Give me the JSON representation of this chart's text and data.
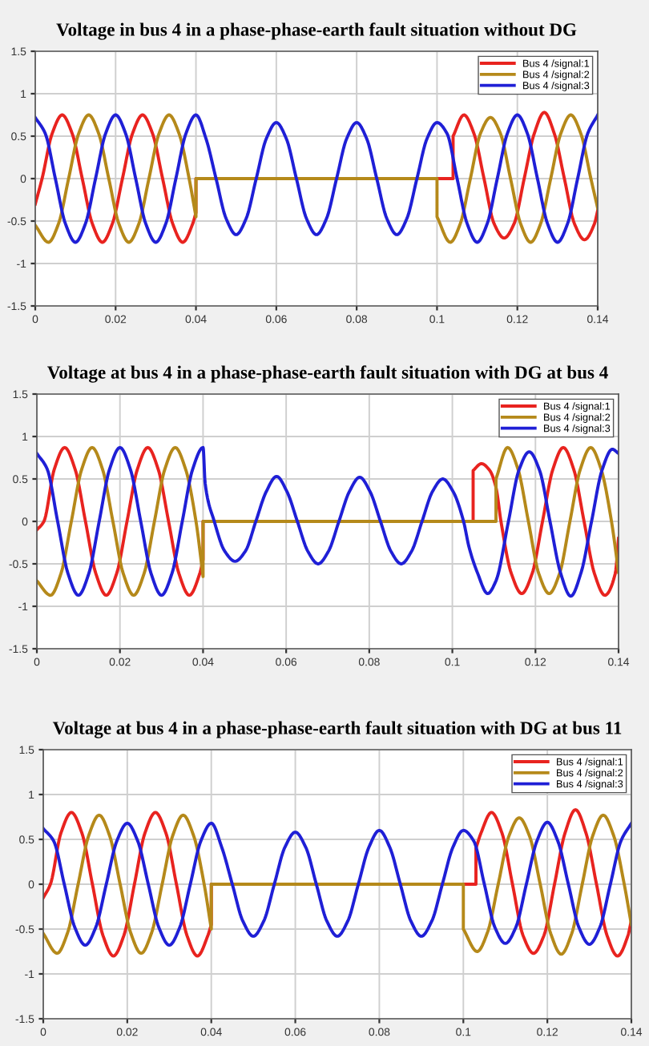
{
  "chart_data": [
    {
      "type": "line",
      "title": "Voltage in bus 4 in a phase-phase-earth fault situation without DG",
      "xlim": [
        0,
        0.14
      ],
      "ylim": [
        -1.5,
        1.5
      ],
      "xticks": [
        0,
        0.02,
        0.04,
        0.06,
        0.08,
        0.1,
        0.12,
        0.14
      ],
      "yticks": [
        -1.5,
        -1,
        -0.5,
        0,
        0.5,
        1,
        1.5
      ],
      "grid": true,
      "legend": "top right",
      "marker": "none",
      "line_style": "solid",
      "series": [
        {
          "name": "Bus 4 /signal:1",
          "color": "#e8231f",
          "x": [
            0,
            0.0017,
            0.0042,
            0.0067,
            0.0092,
            0.0117,
            0.0142,
            0.0167,
            0.0192,
            0.0217,
            0.0242,
            0.0267,
            0.0292,
            0.0317,
            0.0342,
            0.0367,
            0.0392,
            0.04,
            0.04,
            0.104,
            0.104,
            0.1067,
            0.1092,
            0.1117,
            0.1142,
            0.1167,
            0.1192,
            0.1217,
            0.1242,
            0.1267,
            0.1292,
            0.1317,
            0.1342,
            0.1367,
            0.1392,
            0.14
          ],
          "values": [
            -0.3,
            0,
            0.53,
            0.75,
            0.53,
            0,
            -0.53,
            -0.75,
            -0.53,
            0,
            0.53,
            0.75,
            0.53,
            0,
            -0.53,
            -0.75,
            -0.53,
            -0.4,
            0,
            0,
            0.5,
            0.75,
            0.53,
            0,
            -0.53,
            -0.7,
            -0.53,
            0,
            0.53,
            0.78,
            0.53,
            0,
            -0.53,
            -0.72,
            -0.53,
            -0.375
          ]
        },
        {
          "name": "Bus 4 /signal:2",
          "color": "#b5891a",
          "x": [
            0,
            0.0033,
            0.0058,
            0.0083,
            0.0108,
            0.0133,
            0.0158,
            0.0183,
            0.0208,
            0.0233,
            0.0258,
            0.0283,
            0.0308,
            0.0333,
            0.0358,
            0.0383,
            0.04,
            0.04,
            0.1,
            0.1,
            0.1033,
            0.1058,
            0.1083,
            0.1108,
            0.1133,
            0.1158,
            0.1183,
            0.1208,
            0.1233,
            0.1258,
            0.1283,
            0.1308,
            0.1333,
            0.1358,
            0.1383,
            0.14
          ],
          "values": [
            -0.55,
            -0.75,
            -0.53,
            0,
            0.53,
            0.75,
            0.53,
            0,
            -0.53,
            -0.75,
            -0.53,
            0,
            0.53,
            0.75,
            0.53,
            0,
            -0.45,
            0,
            0,
            -0.45,
            -0.75,
            -0.53,
            0,
            0.53,
            0.72,
            0.53,
            0,
            -0.53,
            -0.75,
            -0.53,
            0,
            0.53,
            0.75,
            0.53,
            0,
            -0.35
          ]
        },
        {
          "name": "Bus 4 /signal:3",
          "color": "#1f1fd6",
          "x": [
            0,
            0.0025,
            0.005,
            0.0075,
            0.01,
            0.0125,
            0.015,
            0.0175,
            0.02,
            0.0225,
            0.025,
            0.0275,
            0.03,
            0.0325,
            0.035,
            0.0375,
            0.04,
            0.0425,
            0.045,
            0.0475,
            0.05,
            0.0525,
            0.055,
            0.0575,
            0.06,
            0.0625,
            0.065,
            0.0675,
            0.07,
            0.0725,
            0.075,
            0.0775,
            0.08,
            0.0825,
            0.085,
            0.0875,
            0.09,
            0.0925,
            0.095,
            0.0975,
            0.1,
            0.1025,
            0.105,
            0.1075,
            0.11,
            0.1125,
            0.115,
            0.1175,
            0.12,
            0.1225,
            0.125,
            0.1275,
            0.13,
            0.1325,
            0.135,
            0.1375,
            0.14
          ],
          "values": [
            0.72,
            0.53,
            0,
            -0.53,
            -0.75,
            -0.53,
            0,
            0.53,
            0.75,
            0.53,
            0,
            -0.53,
            -0.75,
            -0.53,
            0,
            0.53,
            0.75,
            0.47,
            0,
            -0.47,
            -0.66,
            -0.47,
            0,
            0.47,
            0.66,
            0.47,
            0,
            -0.47,
            -0.66,
            -0.47,
            0,
            0.47,
            0.66,
            0.47,
            0,
            -0.47,
            -0.66,
            -0.47,
            0,
            0.47,
            0.66,
            0.53,
            0,
            -0.53,
            -0.75,
            -0.53,
            0,
            0.53,
            0.75,
            0.53,
            0,
            -0.53,
            -0.75,
            -0.53,
            0,
            0.53,
            0.75
          ]
        }
      ]
    },
    {
      "type": "line",
      "title": "Voltage at bus 4 in a phase-phase-earth fault situation with DG at bus 4",
      "xlim": [
        0,
        0.14
      ],
      "ylim": [
        -1.5,
        1.5
      ],
      "xticks": [
        0,
        0.02,
        0.04,
        0.06,
        0.08,
        0.1,
        0.12,
        0.14
      ],
      "yticks": [
        -1.5,
        -1,
        -0.5,
        0,
        0.5,
        1,
        1.5
      ],
      "grid": true,
      "legend": "top right",
      "marker": "none",
      "line_style": "solid",
      "series": [
        {
          "name": "Bus 4 /signal:1",
          "color": "#e8231f",
          "x": [
            0,
            0.0017,
            0.0042,
            0.0067,
            0.0092,
            0.0117,
            0.0142,
            0.0167,
            0.0192,
            0.0217,
            0.0242,
            0.0267,
            0.0292,
            0.0317,
            0.0342,
            0.0367,
            0.0392,
            0.04,
            0.04,
            0.105,
            0.105,
            0.107,
            0.109,
            0.1105,
            0.1117,
            0.1142,
            0.1167,
            0.1192,
            0.1217,
            0.1242,
            0.1267,
            0.1292,
            0.1317,
            0.1342,
            0.1367,
            0.1392,
            0.14
          ],
          "values": [
            -0.1,
            0,
            0.615,
            0.87,
            0.615,
            0,
            -0.615,
            -0.87,
            -0.615,
            0,
            0.615,
            0.87,
            0.615,
            0,
            -0.615,
            -0.87,
            -0.615,
            -0.45,
            0,
            0,
            0.6,
            0.68,
            0.6,
            0.4,
            0,
            -0.615,
            -0.85,
            -0.615,
            0,
            0.615,
            0.87,
            0.615,
            0,
            -0.615,
            -0.87,
            -0.615,
            -0.2
          ]
        },
        {
          "name": "Bus 4 /signal:2",
          "color": "#b5891a",
          "x": [
            0,
            0.0033,
            0.0058,
            0.0083,
            0.0108,
            0.0133,
            0.0158,
            0.0183,
            0.0208,
            0.0233,
            0.0258,
            0.0283,
            0.0308,
            0.0333,
            0.0358,
            0.0383,
            0.04,
            0.04,
            0.1105,
            0.1105,
            0.1133,
            0.1158,
            0.1183,
            0.1208,
            0.1233,
            0.1258,
            0.1283,
            0.1308,
            0.1333,
            0.1358,
            0.1383,
            0.14
          ],
          "values": [
            -0.7,
            -0.87,
            -0.615,
            0,
            0.615,
            0.87,
            0.615,
            0,
            -0.615,
            -0.87,
            -0.615,
            0,
            0.615,
            0.87,
            0.615,
            0,
            -0.65,
            0,
            0,
            0.5,
            0.87,
            0.615,
            0,
            -0.615,
            -0.85,
            -0.615,
            0,
            0.615,
            0.87,
            0.615,
            0,
            -0.6
          ]
        },
        {
          "name": "Bus 4 /signal:3",
          "color": "#1f1fd6",
          "x": [
            0,
            0.0025,
            0.005,
            0.0075,
            0.01,
            0.0125,
            0.015,
            0.0175,
            0.02,
            0.0225,
            0.025,
            0.0275,
            0.03,
            0.0325,
            0.035,
            0.0375,
            0.04,
            0.0405,
            0.0427,
            0.0452,
            0.0477,
            0.0502,
            0.0527,
            0.0552,
            0.0577,
            0.0602,
            0.0627,
            0.0652,
            0.0677,
            0.0702,
            0.0727,
            0.0752,
            0.0777,
            0.0802,
            0.0827,
            0.0852,
            0.0877,
            0.0902,
            0.0927,
            0.0952,
            0.0977,
            0.1002,
            0.1027,
            0.104,
            0.106,
            0.1085,
            0.1105,
            0.1135,
            0.116,
            0.1185,
            0.121,
            0.1235,
            0.126,
            0.1285,
            0.131,
            0.1335,
            0.136,
            0.1385,
            0.14
          ],
          "values": [
            0.8,
            0.615,
            0,
            -0.615,
            -0.87,
            -0.615,
            0,
            0.615,
            0.87,
            0.615,
            0,
            -0.615,
            -0.87,
            -0.615,
            0,
            0.615,
            0.87,
            0.45,
            0,
            -0.35,
            -0.47,
            -0.35,
            0,
            0.35,
            0.53,
            0.35,
            0,
            -0.35,
            -0.5,
            -0.35,
            0,
            0.35,
            0.52,
            0.35,
            0,
            -0.35,
            -0.5,
            -0.35,
            0,
            0.35,
            0.5,
            0.35,
            0,
            -0.3,
            -0.6,
            -0.85,
            -0.7,
            0,
            0.6,
            0.82,
            0.6,
            0,
            -0.6,
            -0.88,
            -0.6,
            0,
            0.6,
            0.85,
            0.8
          ]
        }
      ]
    },
    {
      "type": "line",
      "title": "Voltage at bus 4 in a phase-phase-earth fault situation with DG at bus 11",
      "xlim": [
        0,
        0.14
      ],
      "ylim": [
        -1.5,
        1.5
      ],
      "xticks": [
        0,
        0.02,
        0.04,
        0.06,
        0.08,
        0.1,
        0.12,
        0.14
      ],
      "yticks": [
        -1.5,
        -1,
        -0.5,
        0,
        0.5,
        1,
        1.5
      ],
      "grid": true,
      "legend": "top right",
      "marker": "none",
      "line_style": "solid",
      "series": [
        {
          "name": "Bus 4 /signal:1",
          "color": "#e8231f",
          "x": [
            0,
            0.0017,
            0.0042,
            0.0067,
            0.0092,
            0.0117,
            0.0142,
            0.0167,
            0.0192,
            0.0217,
            0.0242,
            0.0267,
            0.0292,
            0.0317,
            0.0342,
            0.0367,
            0.0392,
            0.04,
            0.04,
            0.103,
            0.103,
            0.1042,
            0.1067,
            0.1092,
            0.1117,
            0.1142,
            0.1167,
            0.1192,
            0.1217,
            0.1242,
            0.1267,
            0.1292,
            0.1317,
            0.1342,
            0.1367,
            0.1392,
            0.14
          ],
          "values": [
            -0.15,
            0,
            0.57,
            0.8,
            0.57,
            0,
            -0.57,
            -0.8,
            -0.57,
            0,
            0.57,
            0.8,
            0.57,
            0,
            -0.57,
            -0.8,
            -0.57,
            -0.45,
            0,
            0,
            0.4,
            0.57,
            0.8,
            0.57,
            0,
            -0.57,
            -0.77,
            -0.57,
            0,
            0.57,
            0.83,
            0.57,
            0,
            -0.57,
            -0.8,
            -0.57,
            -0.4
          ]
        },
        {
          "name": "Bus 4 /signal:2",
          "color": "#b5891a",
          "x": [
            0,
            0.0033,
            0.0058,
            0.0083,
            0.0108,
            0.0133,
            0.0158,
            0.0183,
            0.0208,
            0.0233,
            0.0258,
            0.0283,
            0.0308,
            0.0333,
            0.0358,
            0.0383,
            0.04,
            0.04,
            0.1,
            0.1,
            0.1033,
            0.1058,
            0.1083,
            0.1108,
            0.1133,
            0.1158,
            0.1183,
            0.1208,
            0.1233,
            0.1258,
            0.1283,
            0.1308,
            0.1333,
            0.1358,
            0.1383,
            0.14
          ],
          "values": [
            -0.55,
            -0.77,
            -0.54,
            0,
            0.54,
            0.77,
            0.54,
            0,
            -0.54,
            -0.77,
            -0.54,
            0,
            0.54,
            0.77,
            0.54,
            0,
            -0.5,
            0,
            0,
            -0.5,
            -0.75,
            -0.53,
            0,
            0.53,
            0.74,
            0.53,
            0,
            -0.55,
            -0.78,
            -0.55,
            0,
            0.54,
            0.77,
            0.54,
            0,
            -0.45
          ]
        },
        {
          "name": "Bus 4 /signal:3",
          "color": "#1f1fd6",
          "x": [
            0,
            0.0025,
            0.005,
            0.0075,
            0.01,
            0.0125,
            0.015,
            0.0175,
            0.02,
            0.0225,
            0.025,
            0.0275,
            0.03,
            0.0325,
            0.035,
            0.0375,
            0.04,
            0.0425,
            0.045,
            0.0475,
            0.05,
            0.0525,
            0.055,
            0.0575,
            0.06,
            0.0625,
            0.065,
            0.0675,
            0.07,
            0.0725,
            0.075,
            0.0775,
            0.08,
            0.0825,
            0.085,
            0.0875,
            0.09,
            0.0925,
            0.095,
            0.0975,
            0.1,
            0.1025,
            0.105,
            0.1075,
            0.11,
            0.1125,
            0.115,
            0.1175,
            0.12,
            0.1225,
            0.125,
            0.1275,
            0.13,
            0.1325,
            0.135,
            0.1375,
            0.14
          ],
          "values": [
            0.62,
            0.48,
            0,
            -0.48,
            -0.68,
            -0.48,
            0,
            0.48,
            0.68,
            0.48,
            0,
            -0.48,
            -0.68,
            -0.48,
            0,
            0.48,
            0.68,
            0.41,
            0,
            -0.41,
            -0.58,
            -0.41,
            0,
            0.41,
            0.58,
            0.41,
            0,
            -0.41,
            -0.58,
            -0.41,
            0,
            0.41,
            0.6,
            0.41,
            0,
            -0.41,
            -0.58,
            -0.41,
            0,
            0.41,
            0.6,
            0.48,
            0,
            -0.48,
            -0.66,
            -0.48,
            0,
            0.48,
            0.69,
            0.48,
            0,
            -0.48,
            -0.67,
            -0.48,
            0,
            0.48,
            0.68
          ]
        }
      ]
    }
  ]
}
